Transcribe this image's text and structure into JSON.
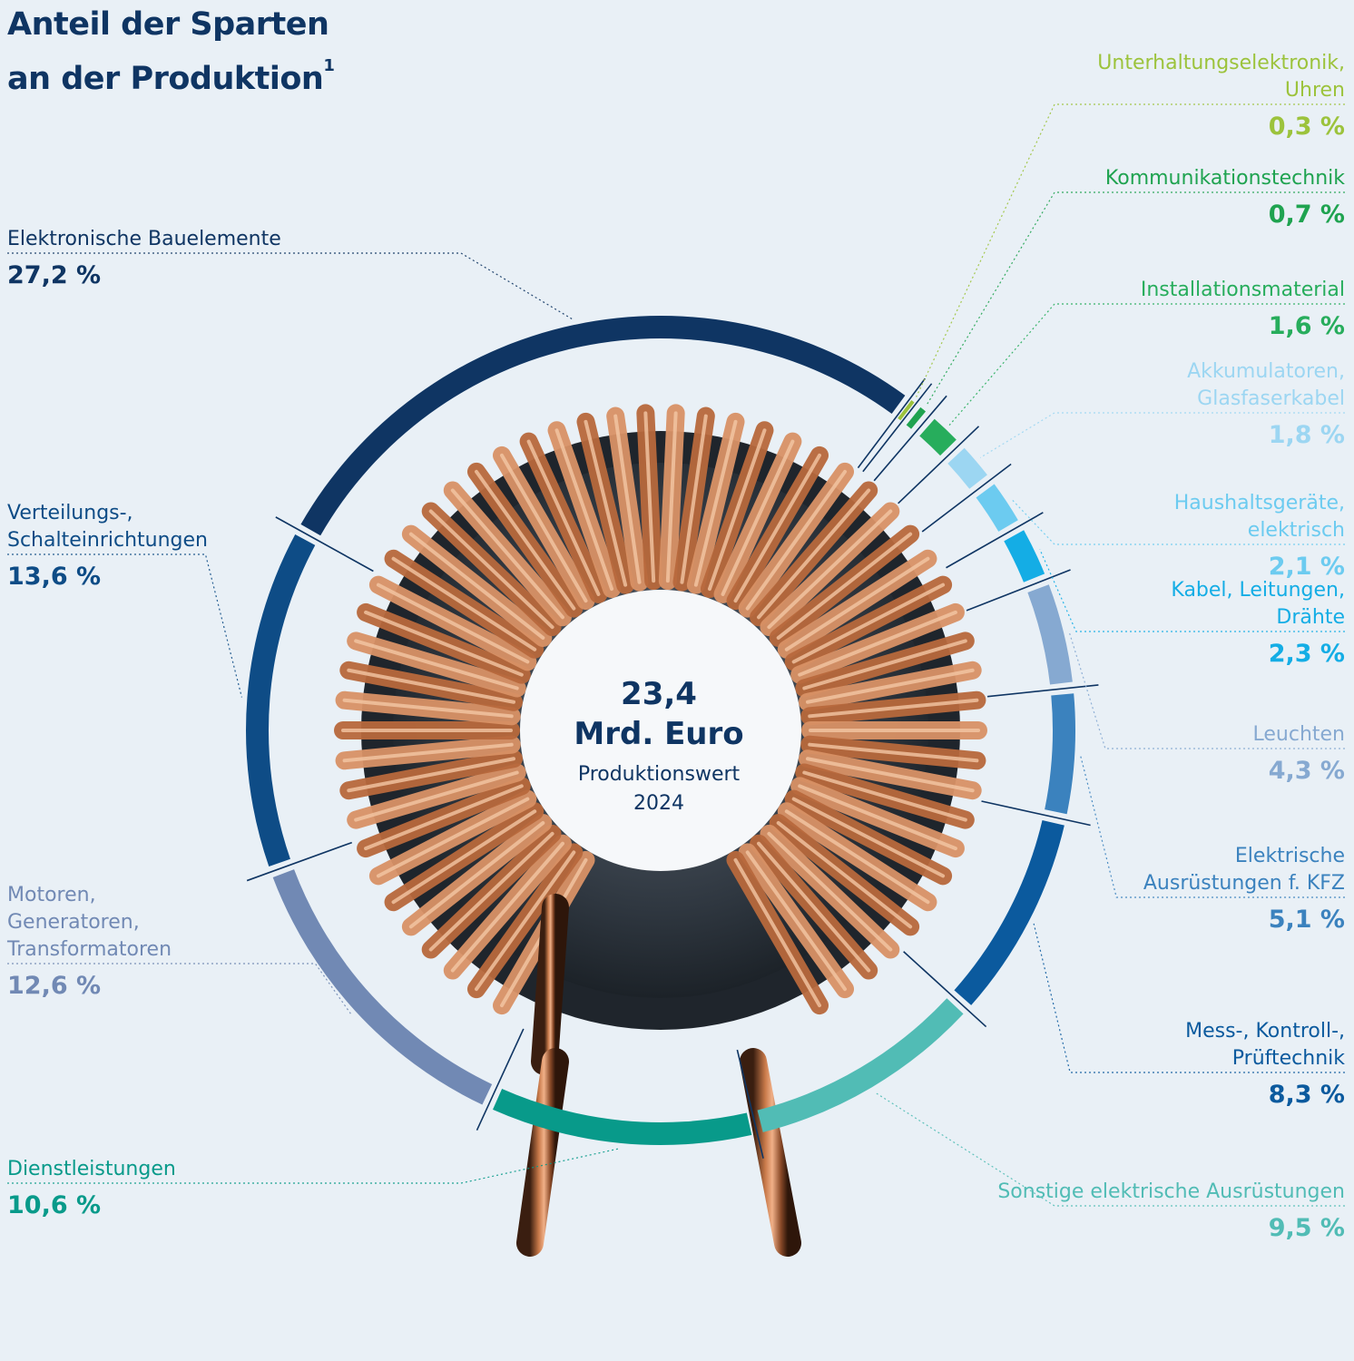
{
  "title_line1": "Anteil der Sparten",
  "title_line2": "an der Produktion",
  "title_sup": "1",
  "center": {
    "value": "23,4",
    "unit": "Mrd. Euro",
    "label": "Produktionswert",
    "year": "2024"
  },
  "chart_data": {
    "type": "pie",
    "variant": "donut-ring",
    "categories": [
      "Elektronische Bauelemente",
      "Unterhaltungselektronik, Uhren",
      "Kommunikationstechnik",
      "Installationsmaterial",
      "Akkumulatoren, Glasfaserkabel",
      "Haushaltsgeräte, elektrisch",
      "Kabel, Leitungen, Drähte",
      "Leuchten",
      "Elektrische Ausrüstungen f. KFZ",
      "Mess-, Kontroll-, Prüftechnik",
      "Sonstige elektrische Ausrüstungen",
      "Dienstleistungen",
      "Motoren, Generatoren, Transformatoren",
      "Verteilungs-, Schalteinrichtungen"
    ],
    "values": [
      27.2,
      0.3,
      0.7,
      1.6,
      1.8,
      2.1,
      2.3,
      4.3,
      5.1,
      8.3,
      9.5,
      10.6,
      12.6,
      13.6
    ],
    "value_labels": [
      "27,2 %",
      "0,3 %",
      "0,7 %",
      "1,6 %",
      "1,8 %",
      "2,1 %",
      "2,3 %",
      "4,3 %",
      "5,1 %",
      "8,3 %",
      "9,5 %",
      "10,6 %",
      "12,6 %",
      "13,6 %"
    ],
    "label_lines": [
      [
        "Elektronische Bauelemente"
      ],
      [
        "Unterhaltungselektronik,",
        "Uhren"
      ],
      [
        "Kommunikationstechnik"
      ],
      [
        "Installationsmaterial"
      ],
      [
        "Akkumulatoren,",
        "Glasfaserkabel"
      ],
      [
        "Haushaltsgeräte,",
        "elektrisch"
      ],
      [
        "Kabel, Leitungen,",
        "Drähte"
      ],
      [
        "Leuchten"
      ],
      [
        "Elektrische",
        "Ausrüstungen f. KFZ"
      ],
      [
        "Mess-, Kontroll-,",
        "Prüftechnik"
      ],
      [
        "Sonstige elektrische Ausrüstungen"
      ],
      [
        "Dienstleistungen"
      ],
      [
        "Motoren,",
        "Generatoren,",
        "Transformatoren"
      ],
      [
        "Verteilungs-,",
        "Schalteinrichtungen"
      ]
    ],
    "colors": [
      "#0f3563",
      "#9cc33c",
      "#1fa350",
      "#27ad5c",
      "#9cd6f2",
      "#6ccbf0",
      "#14ade5",
      "#86a9d1",
      "#3b82be",
      "#0b5a9e",
      "#51bcb5",
      "#089a8a",
      "#7189b4",
      "#0e4c86"
    ],
    "unit": "%",
    "legend": "none",
    "grid": false
  }
}
